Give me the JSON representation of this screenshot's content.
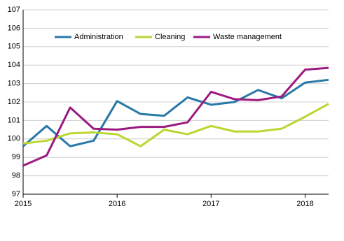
{
  "chart_data": {
    "type": "line",
    "categories": [
      "2015",
      null,
      null,
      null,
      "2016",
      null,
      null,
      null,
      "2017",
      null,
      null,
      null,
      "2018",
      null
    ],
    "series": [
      {
        "name": "Administration",
        "color": "#2878a8",
        "values": [
          99.6,
          100.7,
          99.6,
          99.9,
          102.05,
          101.35,
          101.25,
          102.25,
          101.85,
          102.0,
          102.65,
          102.2,
          103.05,
          103.2
        ]
      },
      {
        "name": "Cleaning",
        "color": "#bcd631",
        "values": [
          99.75,
          99.9,
          100.3,
          100.35,
          100.25,
          99.6,
          100.5,
          100.25,
          100.7,
          100.4,
          100.4,
          100.55,
          101.2,
          101.9
        ]
      },
      {
        "name": "Waste management",
        "color": "#9c1a80",
        "values": [
          98.55,
          99.1,
          101.7,
          100.55,
          100.5,
          100.65,
          100.65,
          100.9,
          102.55,
          102.15,
          102.1,
          102.3,
          103.75,
          103.85
        ]
      }
    ],
    "ylim": [
      97,
      107
    ],
    "yticks": [
      97,
      98,
      99,
      100,
      101,
      102,
      103,
      104,
      105,
      106,
      107
    ],
    "grid": true,
    "legend": "top"
  }
}
